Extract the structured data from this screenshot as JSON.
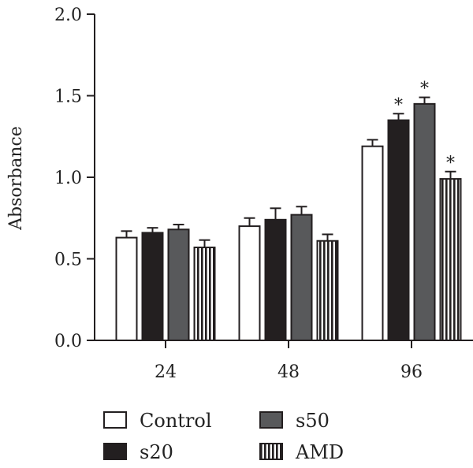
{
  "chart_data": {
    "type": "bar",
    "categories": [
      "24",
      "48",
      "96"
    ],
    "ylabel": "Absorbance",
    "xlabel": "",
    "ylim": [
      0,
      2.0
    ],
    "yticks": [
      "0.0",
      "0.5",
      "1.0",
      "1.5",
      "2.0"
    ],
    "grid": false,
    "legend_position": "bottom",
    "series": [
      {
        "name": "Control",
        "values": [
          0.63,
          0.7,
          1.19
        ],
        "errors": [
          0.04,
          0.05,
          0.04
        ],
        "fill": "#ffffff",
        "pattern": "solid"
      },
      {
        "name": "s20",
        "values": [
          0.66,
          0.74,
          1.35
        ],
        "errors": [
          0.03,
          0.07,
          0.04
        ],
        "fill": "#231f20",
        "pattern": "solid"
      },
      {
        "name": "s50",
        "values": [
          0.68,
          0.77,
          1.45
        ],
        "errors": [
          0.03,
          0.05,
          0.04
        ],
        "fill": "#58595b",
        "pattern": "solid"
      },
      {
        "name": "AMD",
        "values": [
          0.57,
          0.61,
          0.99
        ],
        "errors": [
          0.045,
          0.04,
          0.045
        ],
        "fill": "#ffffff",
        "pattern": "vertical-stripes"
      }
    ],
    "annotations": [
      {
        "text": "*",
        "category": "96",
        "series": "s20"
      },
      {
        "text": "*",
        "category": "96",
        "series": "s50"
      },
      {
        "text": "*",
        "category": "96",
        "series": "AMD"
      }
    ]
  }
}
